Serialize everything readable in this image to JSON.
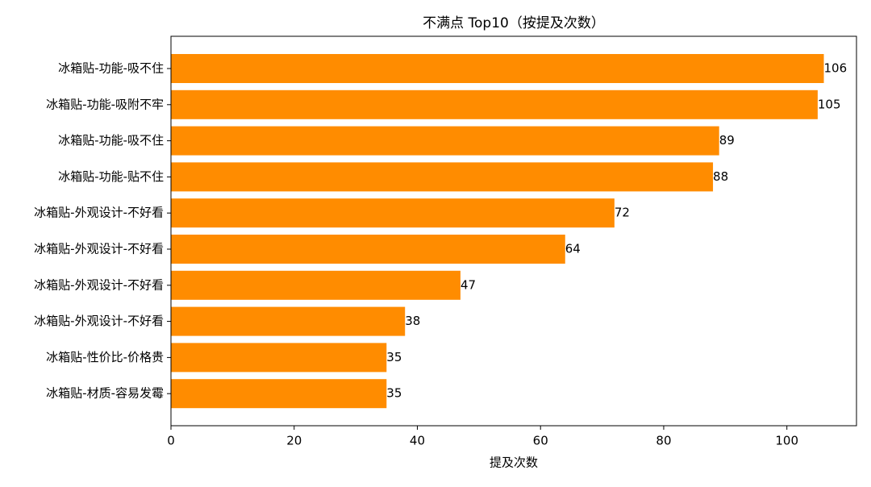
{
  "chart_data": {
    "type": "bar",
    "orientation": "horizontal",
    "title": "不满点 Top10（按提及次数）",
    "x_label": "提及次数",
    "categories": [
      "冰箱贴-功能-吸不住",
      "冰箱贴-功能-吸附不牢",
      "冰箱贴-功能-吸不住",
      "冰箱贴-功能-贴不住",
      "冰箱贴-外观设计-不好看",
      "冰箱贴-外观设计-不好看",
      "冰箱贴-外观设计-不好看",
      "冰箱贴-外观设计-不好看",
      "冰箱贴-性价比-价格贵",
      "冰箱贴-材质-容易发霉"
    ],
    "values": [
      106,
      105,
      89,
      88,
      72,
      64,
      47,
      38,
      35,
      35
    ],
    "color": "#ff8c00",
    "xlim": [
      0,
      111.3
    ],
    "xticks": [
      0,
      20,
      40,
      60,
      80,
      100
    ]
  }
}
